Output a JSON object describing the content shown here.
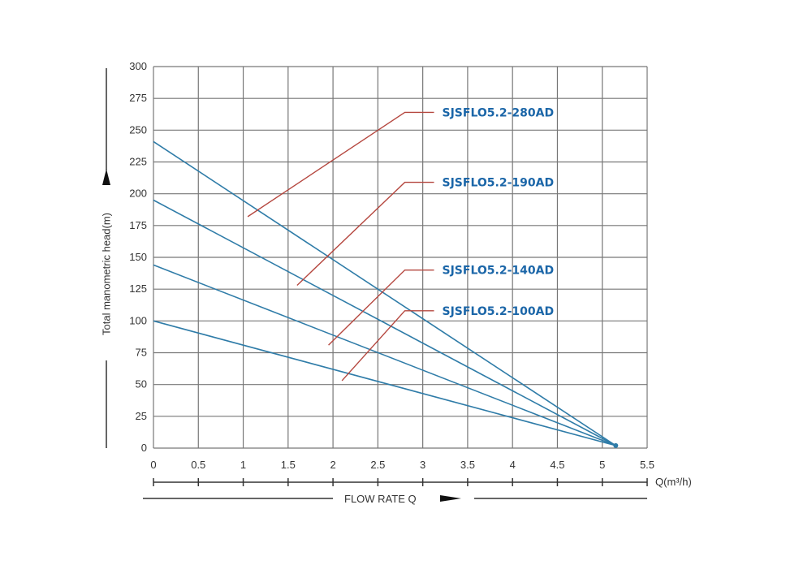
{
  "chart_data": {
    "type": "line",
    "ylabel": "Total manometric head(m)",
    "xlabel": "FLOW RATE Q",
    "x_unit_label": "Q(m³/h)",
    "xlim": [
      0,
      5.5
    ],
    "ylim": [
      0,
      300
    ],
    "x_ticks": [
      "0",
      "0.5",
      "1",
      "1.5",
      "2",
      "2.5",
      "3",
      "3.5",
      "4",
      "4.5",
      "5",
      "5.5"
    ],
    "y_ticks": [
      "0",
      "25",
      "50",
      "75",
      "100",
      "125",
      "150",
      "175",
      "200",
      "225",
      "250",
      "275",
      "300"
    ],
    "grid": true,
    "colors": {
      "line": "#2f7ca8",
      "leader": "#b5473f",
      "label": "#1b66a8",
      "grid": "#777777"
    },
    "series": [
      {
        "name": "SJSFLO5.2-280AD",
        "x": [
          0,
          5.15
        ],
        "y": [
          241,
          2
        ],
        "label_at": [
          1.05,
          182
        ],
        "label_elbow": [
          2.8,
          264
        ]
      },
      {
        "name": "SJSFLO5.2-190AD",
        "x": [
          0,
          5.15
        ],
        "y": [
          195,
          2
        ],
        "label_at": [
          1.6,
          128
        ],
        "label_elbow": [
          2.8,
          209
        ]
      },
      {
        "name": "SJSFLO5.2-140AD",
        "x": [
          0,
          5.15
        ],
        "y": [
          144,
          2
        ],
        "label_at": [
          1.95,
          81
        ],
        "label_elbow": [
          2.8,
          140
        ]
      },
      {
        "name": "SJSFLO5.2-100AD",
        "x": [
          0,
          5.15
        ],
        "y": [
          100,
          2
        ],
        "label_at": [
          2.1,
          53
        ],
        "label_elbow": [
          2.8,
          108
        ]
      }
    ]
  }
}
